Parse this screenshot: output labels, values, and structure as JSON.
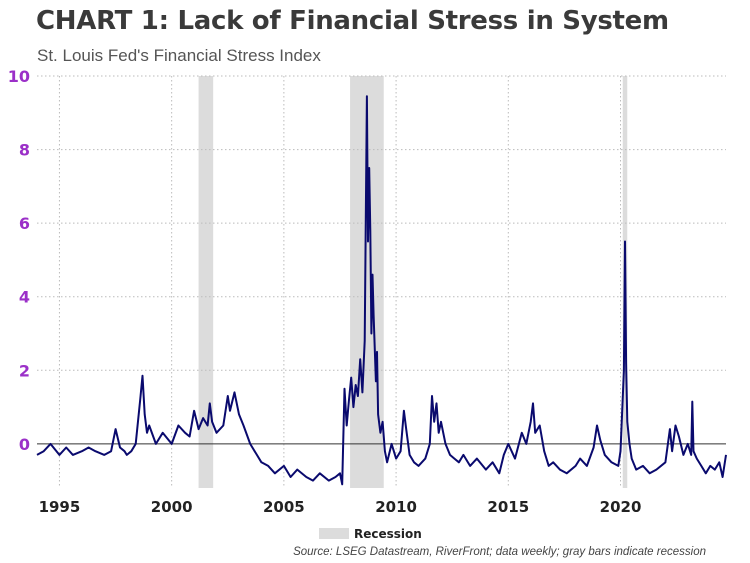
{
  "header": {
    "title": "CHART 1: Lack of Financial Stress in System",
    "subtitle": "St. Louis Fed's Financial Stress Index"
  },
  "footer": {
    "source": "Source: LSEG Datastream, RiverFront; data weekly; gray bars indicate recession"
  },
  "colors": {
    "line": "#0a0a6e",
    "recession": "#dcdcdc",
    "ytick": "#9b30c8",
    "zero_line": "#333333",
    "grid": "#bbbbbb"
  },
  "chart_data": {
    "type": "line",
    "title": "CHART 1: Lack of Financial Stress in System",
    "subtitle": "St. Louis Fed's Financial Stress Index",
    "xlim": [
      1994.0,
      2024.7
    ],
    "ylim": [
      -1.2,
      10
    ],
    "yticks": [
      0,
      2,
      4,
      6,
      8,
      10
    ],
    "xticks": [
      1995,
      2000,
      2005,
      2010,
      2015,
      2020
    ],
    "grid": true,
    "legend": {
      "position": "bottom-center",
      "entries": [
        "Recession"
      ]
    },
    "recessions": [
      {
        "start": 2001.2,
        "end": 2001.85
      },
      {
        "start": 2007.95,
        "end": 2009.45
      },
      {
        "start": 2020.1,
        "end": 2020.3
      }
    ],
    "series": [
      {
        "x": [
          1994.0,
          1994.3,
          1994.6,
          1995.0,
          1995.3,
          1995.6,
          1996.0,
          1996.3,
          1996.6,
          1997.0,
          1997.3,
          1997.5,
          1997.7,
          1997.9,
          1998.0,
          1998.2,
          1998.4,
          1998.6,
          1998.7,
          1998.8,
          1998.9,
          1999.0,
          1999.3,
          1999.6,
          2000.0,
          2000.3,
          2000.6,
          2000.8,
          2001.0,
          2001.2,
          2001.4,
          2001.6,
          2001.7,
          2001.8,
          2002.0,
          2002.3,
          2002.5,
          2002.6,
          2002.8,
          2003.0,
          2003.2,
          2003.5,
          2003.8,
          2004.0,
          2004.3,
          2004.6,
          2005.0,
          2005.3,
          2005.6,
          2006.0,
          2006.3,
          2006.6,
          2007.0,
          2007.3,
          2007.5,
          2007.6,
          2007.7,
          2007.8,
          2007.9,
          2008.0,
          2008.1,
          2008.2,
          2008.3,
          2008.4,
          2008.5,
          2008.6,
          2008.7,
          2008.75,
          2008.8,
          2008.85,
          2008.9,
          2008.95,
          2009.0,
          2009.1,
          2009.15,
          2009.2,
          2009.3,
          2009.4,
          2009.5,
          2009.6,
          2009.8,
          2010.0,
          2010.2,
          2010.35,
          2010.45,
          2010.6,
          2010.8,
          2011.0,
          2011.3,
          2011.5,
          2011.6,
          2011.7,
          2011.8,
          2011.9,
          2012.0,
          2012.2,
          2012.4,
          2012.6,
          2012.8,
          2013.0,
          2013.3,
          2013.6,
          2014.0,
          2014.3,
          2014.6,
          2014.8,
          2015.0,
          2015.3,
          2015.6,
          2015.8,
          2016.0,
          2016.1,
          2016.2,
          2016.4,
          2016.6,
          2016.8,
          2017.0,
          2017.3,
          2017.6,
          2018.0,
          2018.2,
          2018.5,
          2018.8,
          2018.95,
          2019.1,
          2019.3,
          2019.6,
          2019.9,
          2020.0,
          2020.15,
          2020.2,
          2020.25,
          2020.3,
          2020.4,
          2020.5,
          2020.7,
          2021.0,
          2021.3,
          2021.6,
          2022.0,
          2022.2,
          2022.3,
          2022.45,
          2022.6,
          2022.8,
          2023.0,
          2023.15,
          2023.2,
          2023.25,
          2023.4,
          2023.6,
          2023.8,
          2024.0,
          2024.2,
          2024.4,
          2024.55,
          2024.7
        ],
        "values": [
          -0.3,
          -0.2,
          0.0,
          -0.3,
          -0.1,
          -0.3,
          -0.2,
          -0.1,
          -0.2,
          -0.3,
          -0.2,
          0.4,
          -0.1,
          -0.2,
          -0.3,
          -0.2,
          0.0,
          1.2,
          1.85,
          0.8,
          0.3,
          0.5,
          0.0,
          0.3,
          0.0,
          0.5,
          0.3,
          0.2,
          0.9,
          0.4,
          0.7,
          0.5,
          1.1,
          0.6,
          0.3,
          0.5,
          1.3,
          0.9,
          1.4,
          0.8,
          0.5,
          0.0,
          -0.3,
          -0.5,
          -0.6,
          -0.8,
          -0.6,
          -0.9,
          -0.7,
          -0.9,
          -1.0,
          -0.8,
          -1.0,
          -0.9,
          -0.8,
          -1.1,
          1.5,
          0.5,
          1.2,
          1.8,
          1.0,
          1.6,
          1.3,
          2.3,
          1.4,
          2.8,
          9.45,
          5.5,
          7.5,
          5.8,
          3.0,
          4.6,
          3.5,
          1.7,
          2.5,
          0.8,
          0.3,
          0.6,
          -0.2,
          -0.5,
          0.0,
          -0.4,
          -0.2,
          0.9,
          0.4,
          -0.3,
          -0.5,
          -0.6,
          -0.4,
          0.0,
          1.3,
          0.6,
          1.1,
          0.3,
          0.6,
          0.0,
          -0.3,
          -0.4,
          -0.5,
          -0.3,
          -0.6,
          -0.4,
          -0.7,
          -0.5,
          -0.8,
          -0.3,
          0.0,
          -0.4,
          0.3,
          0.0,
          0.6,
          1.1,
          0.3,
          0.5,
          -0.2,
          -0.6,
          -0.5,
          -0.7,
          -0.8,
          -0.6,
          -0.4,
          -0.6,
          -0.1,
          0.5,
          0.1,
          -0.3,
          -0.5,
          -0.6,
          -0.2,
          2.0,
          5.5,
          2.2,
          0.6,
          0.0,
          -0.4,
          -0.7,
          -0.6,
          -0.8,
          -0.7,
          -0.5,
          0.4,
          -0.2,
          0.5,
          0.2,
          -0.3,
          0.0,
          -0.3,
          1.15,
          -0.2,
          -0.4,
          -0.6,
          -0.8,
          -0.6,
          -0.7,
          -0.5,
          -0.9,
          -0.3
        ]
      }
    ]
  }
}
